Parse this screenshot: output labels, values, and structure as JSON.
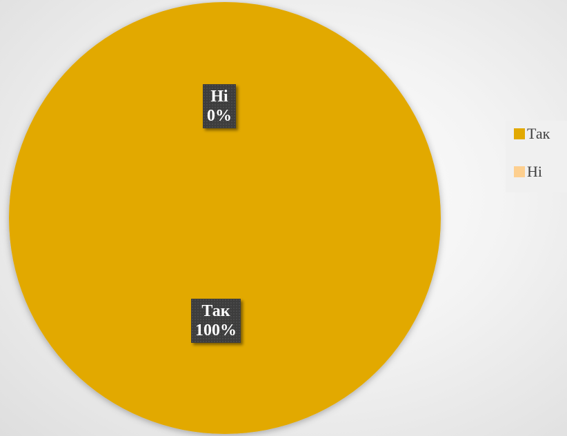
{
  "chart_data": {
    "type": "pie",
    "title": "",
    "categories": [
      "Так",
      "Ні"
    ],
    "values": [
      100,
      0
    ],
    "labels": [
      {
        "name": "Так",
        "value": "100%"
      },
      {
        "name": "Ні",
        "value": "0%"
      }
    ],
    "colors": [
      "#E2A900",
      "#FDCF8F"
    ],
    "legend": {
      "position": "right",
      "entries": [
        "Так",
        "Ні"
      ]
    }
  }
}
